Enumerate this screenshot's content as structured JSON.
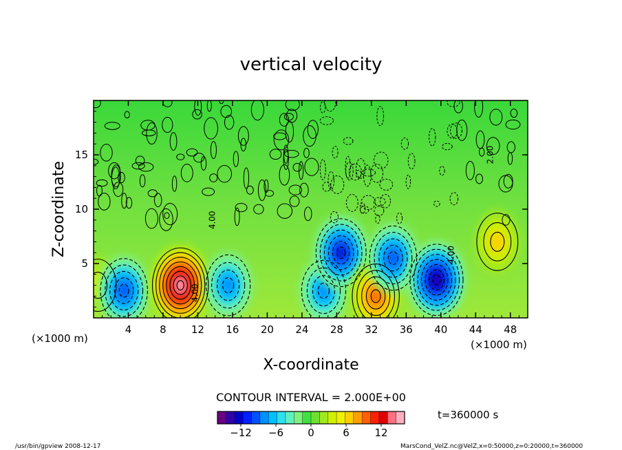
{
  "chart_data": {
    "type": "heatmap",
    "title": "vertical velocity",
    "xlabel": "X-coordinate",
    "ylabel": "Z-coordinate",
    "x_unit_left": "(×1000 m)",
    "x_unit_right": "(×1000 m)",
    "xlim": [
      0,
      50
    ],
    "ylim": [
      0,
      20
    ],
    "x_ticks": [
      4,
      8,
      12,
      16,
      20,
      24,
      28,
      32,
      36,
      40,
      44,
      48
    ],
    "y_ticks": [
      5,
      10,
      15
    ],
    "contour_interval_text": "CONTOUR INTERVAL = 2.000E+00",
    "contour_labels": [
      {
        "x": 12,
        "z": 2.3,
        "text": "4.00"
      },
      {
        "x": 41.5,
        "z": 5.8,
        "text": "4.00"
      },
      {
        "x": 46,
        "z": 15,
        "text": "2.00"
      },
      {
        "x": 14,
        "z": 9,
        "text": "4.00"
      }
    ],
    "colorbar": {
      "min": -16,
      "max": 16,
      "tick_values": [
        -12,
        -6,
        0,
        6,
        12
      ],
      "tick_labels": [
        "−12",
        "−6",
        "0",
        "6",
        "12"
      ],
      "colors": [
        "#6a0080",
        "#3300aa",
        "#0000c8",
        "#0020ff",
        "#0050ff",
        "#0090ff",
        "#00c0ff",
        "#30e0f0",
        "#60f0c0",
        "#80f080",
        "#40e040",
        "#70e030",
        "#a0e820",
        "#d0f000",
        "#f0f000",
        "#ffd000",
        "#ffa000",
        "#ff6000",
        "#ff2000",
        "#e00000",
        "#ff7080",
        "#ffb0c0"
      ]
    },
    "features": [
      {
        "x": 0.5,
        "z": 3,
        "w": 3,
        "kind": "updraft"
      },
      {
        "x": 3.5,
        "z": 2.5,
        "w": -10,
        "kind": "downdraft"
      },
      {
        "x": 10,
        "z": 3,
        "w": 16,
        "kind": "updraft"
      },
      {
        "x": 15.5,
        "z": 3,
        "w": -8,
        "kind": "downdraft"
      },
      {
        "x": 26.5,
        "z": 2.5,
        "w": -8,
        "kind": "downdraft"
      },
      {
        "x": 28.5,
        "z": 6,
        "w": -12,
        "kind": "downdraft"
      },
      {
        "x": 32.5,
        "z": 2,
        "w": 10,
        "kind": "updraft"
      },
      {
        "x": 34.5,
        "z": 5.5,
        "w": -10,
        "kind": "downdraft"
      },
      {
        "x": 39.5,
        "z": 3.5,
        "w": -14,
        "kind": "downdraft"
      },
      {
        "x": 46.5,
        "z": 7,
        "w": 6,
        "kind": "updraft"
      }
    ]
  },
  "time_label": "t=360000 s",
  "footer_left": "/usr/bin/gpview   2008-12-17",
  "footer_right": "MarsCond_VelZ.nc@VelZ,x=0:50000,z=0:20000,t=360000"
}
